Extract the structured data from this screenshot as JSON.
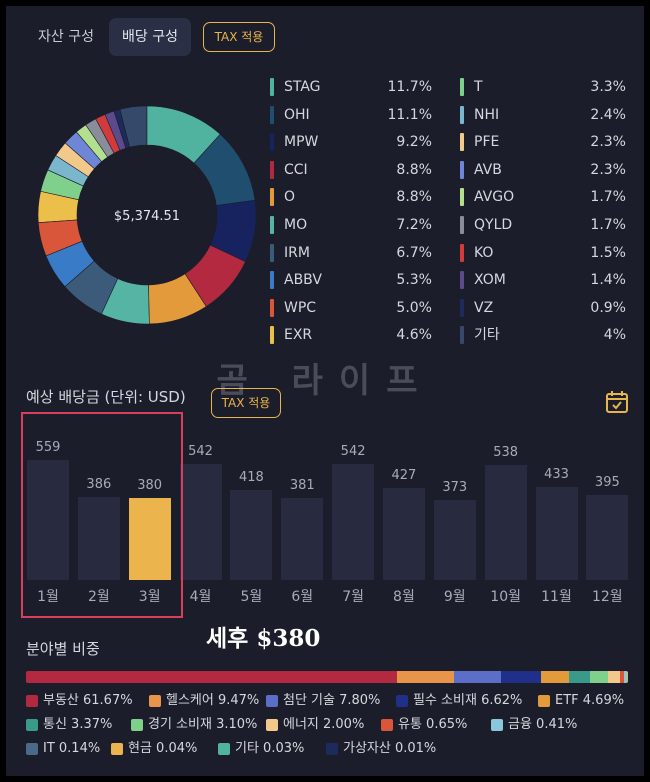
{
  "tabs": {
    "asset": "자산 구성",
    "dividend": "배당 구성",
    "tax": "TAX 적용"
  },
  "donut": {
    "total": "$5,374.51",
    "holdings": [
      {
        "ticker": "STAG",
        "pct": "11.7%",
        "value": 11.7,
        "color": "#4fb3a0"
      },
      {
        "ticker": "OHI",
        "pct": "11.1%",
        "value": 11.1,
        "color": "#1f4e6e"
      },
      {
        "ticker": "MPW",
        "pct": "9.2%",
        "value": 9.2,
        "color": "#16235e"
      },
      {
        "ticker": "CCI",
        "pct": "8.8%",
        "value": 8.8,
        "color": "#b3293f"
      },
      {
        "ticker": "O",
        "pct": "8.8%",
        "value": 8.8,
        "color": "#e39a3b"
      },
      {
        "ticker": "MO",
        "pct": "7.2%",
        "value": 7.2,
        "color": "#55b4a4"
      },
      {
        "ticker": "IRM",
        "pct": "6.7%",
        "value": 6.7,
        "color": "#3c5a7a"
      },
      {
        "ticker": "ABBV",
        "pct": "5.3%",
        "value": 5.3,
        "color": "#3a7bc8"
      },
      {
        "ticker": "WPC",
        "pct": "5.0%",
        "value": 5.0,
        "color": "#d9563a"
      },
      {
        "ticker": "EXR",
        "pct": "4.6%",
        "value": 4.6,
        "color": "#ebbf4a"
      },
      {
        "ticker": "T",
        "pct": "3.3%",
        "value": 3.3,
        "color": "#7fd08a"
      },
      {
        "ticker": "NHI",
        "pct": "2.4%",
        "value": 2.4,
        "color": "#7ab6cc"
      },
      {
        "ticker": "PFE",
        "pct": "2.3%",
        "value": 2.3,
        "color": "#f2c98a"
      },
      {
        "ticker": "AVB",
        "pct": "2.3%",
        "value": 2.3,
        "color": "#6f86d6"
      },
      {
        "ticker": "AVGO",
        "pct": "1.7%",
        "value": 1.7,
        "color": "#b2e08e"
      },
      {
        "ticker": "QYLD",
        "pct": "1.7%",
        "value": 1.7,
        "color": "#8a8d99"
      },
      {
        "ticker": "KO",
        "pct": "1.5%",
        "value": 1.5,
        "color": "#d23b3b"
      },
      {
        "ticker": "XOM",
        "pct": "1.4%",
        "value": 1.4,
        "color": "#5b4b8a"
      },
      {
        "ticker": "VZ",
        "pct": "0.9%",
        "value": 0.9,
        "color": "#1d2b5c"
      },
      {
        "ticker": "기타",
        "pct": "4%",
        "value": 4.0,
        "color": "#354a6b"
      }
    ]
  },
  "watermark": "곰 라이프",
  "expected": {
    "title": "예상 배당금 (단위: USD)",
    "tax": "TAX 적용",
    "highlight_color": "#ebb44c",
    "months": [
      {
        "label": "1월",
        "value": 559
      },
      {
        "label": "2월",
        "value": 386
      },
      {
        "label": "3월",
        "value": 380
      },
      {
        "label": "4월",
        "value": 542
      },
      {
        "label": "5월",
        "value": 418
      },
      {
        "label": "6월",
        "value": 381
      },
      {
        "label": "7월",
        "value": 542
      },
      {
        "label": "8월",
        "value": 427
      },
      {
        "label": "9월",
        "value": 373
      },
      {
        "label": "10월",
        "value": 538
      },
      {
        "label": "11월",
        "value": 433
      },
      {
        "label": "12월",
        "value": 395
      }
    ],
    "highlight_index": 2
  },
  "after_tax": "세후 $380",
  "sectors": {
    "title": "분야별 비중",
    "items": [
      {
        "label": "부동산 61.67%",
        "value": 61.67,
        "color": "#b3293f"
      },
      {
        "label": "헬스케어 9.47%",
        "value": 9.47,
        "color": "#e8944a"
      },
      {
        "label": "첨단 기술 7.80%",
        "value": 7.8,
        "color": "#5b6fc8"
      },
      {
        "label": "필수 소비재 6.62%",
        "value": 6.62,
        "color": "#1f2f8a"
      },
      {
        "label": "ETF 4.69%",
        "value": 4.69,
        "color": "#e39a3b"
      },
      {
        "label": "통신 3.37%",
        "value": 3.37,
        "color": "#3a9a8a"
      },
      {
        "label": "경기 소비재 3.10%",
        "value": 3.1,
        "color": "#7fd08a"
      },
      {
        "label": "에너지 2.00%",
        "value": 2.0,
        "color": "#f2c98a"
      },
      {
        "label": "유통 0.65%",
        "value": 0.65,
        "color": "#d9563a"
      },
      {
        "label": "금융 0.41%",
        "value": 0.41,
        "color": "#8ac6dc"
      },
      {
        "label": "IT 0.14%",
        "value": 0.14,
        "color": "#4a6a8a"
      },
      {
        "label": "현금 0.04%",
        "value": 0.04,
        "color": "#ebb44c"
      },
      {
        "label": "기타 0.03%",
        "value": 0.03,
        "color": "#4fb3a0"
      },
      {
        "label": "가상자산 0.01%",
        "value": 0.01,
        "color": "#1d2b5c"
      }
    ]
  }
}
